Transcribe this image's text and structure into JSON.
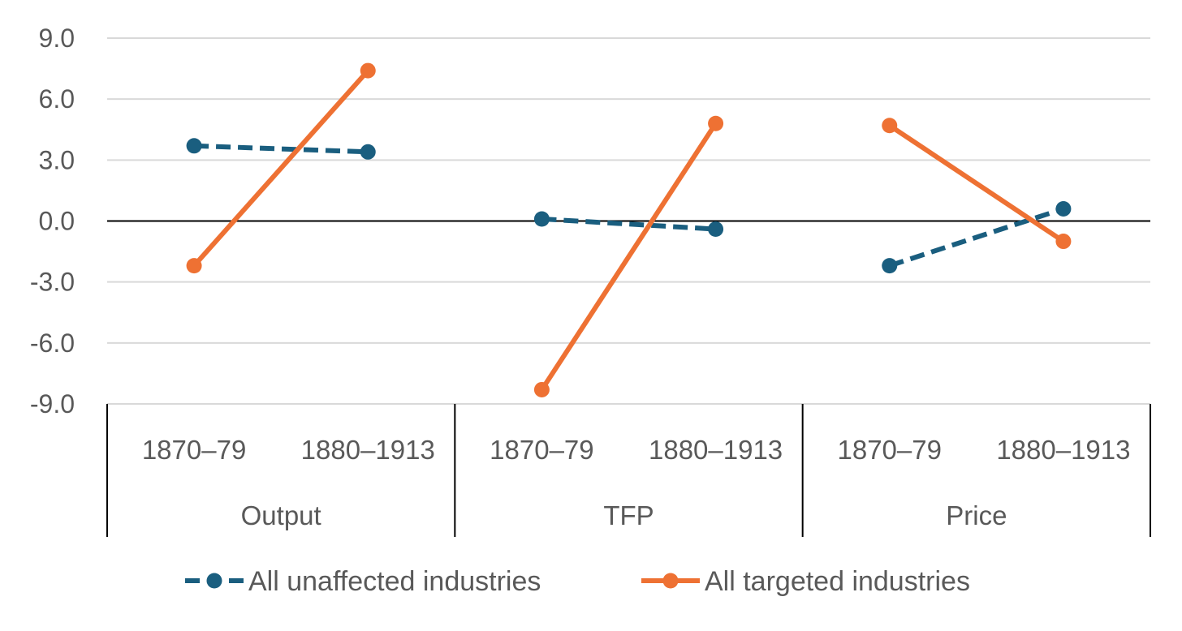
{
  "chart_data": {
    "type": "line",
    "ylim": [
      -9,
      9
    ],
    "yticks": [
      9,
      6,
      3,
      0,
      -3,
      -6,
      -9
    ],
    "ytick_labels": [
      "9.0",
      "6.0",
      "3.0",
      "0.0",
      "-3.0",
      "-6.0",
      "-9.0"
    ],
    "grid": true,
    "groups": [
      {
        "name": "Output",
        "periods": [
          "1870–79",
          "1880–1913"
        ]
      },
      {
        "name": "TFP",
        "periods": [
          "1870–79",
          "1880–1913"
        ]
      },
      {
        "name": "Price",
        "periods": [
          "1870–79",
          "1880–1913"
        ]
      }
    ],
    "series": [
      {
        "name": "All unaffected industries",
        "color": "#1a5e7f",
        "dash": true,
        "values": [
          [
            3.7,
            3.4
          ],
          [
            0.1,
            -0.4
          ],
          [
            -2.2,
            0.6
          ]
        ]
      },
      {
        "name": "All targeted industries",
        "color": "#ee7133",
        "dash": false,
        "values": [
          [
            -2.2,
            7.4
          ],
          [
            -8.3,
            4.8
          ],
          [
            4.7,
            -1.0
          ]
        ]
      }
    ],
    "legend_position": "bottom"
  }
}
